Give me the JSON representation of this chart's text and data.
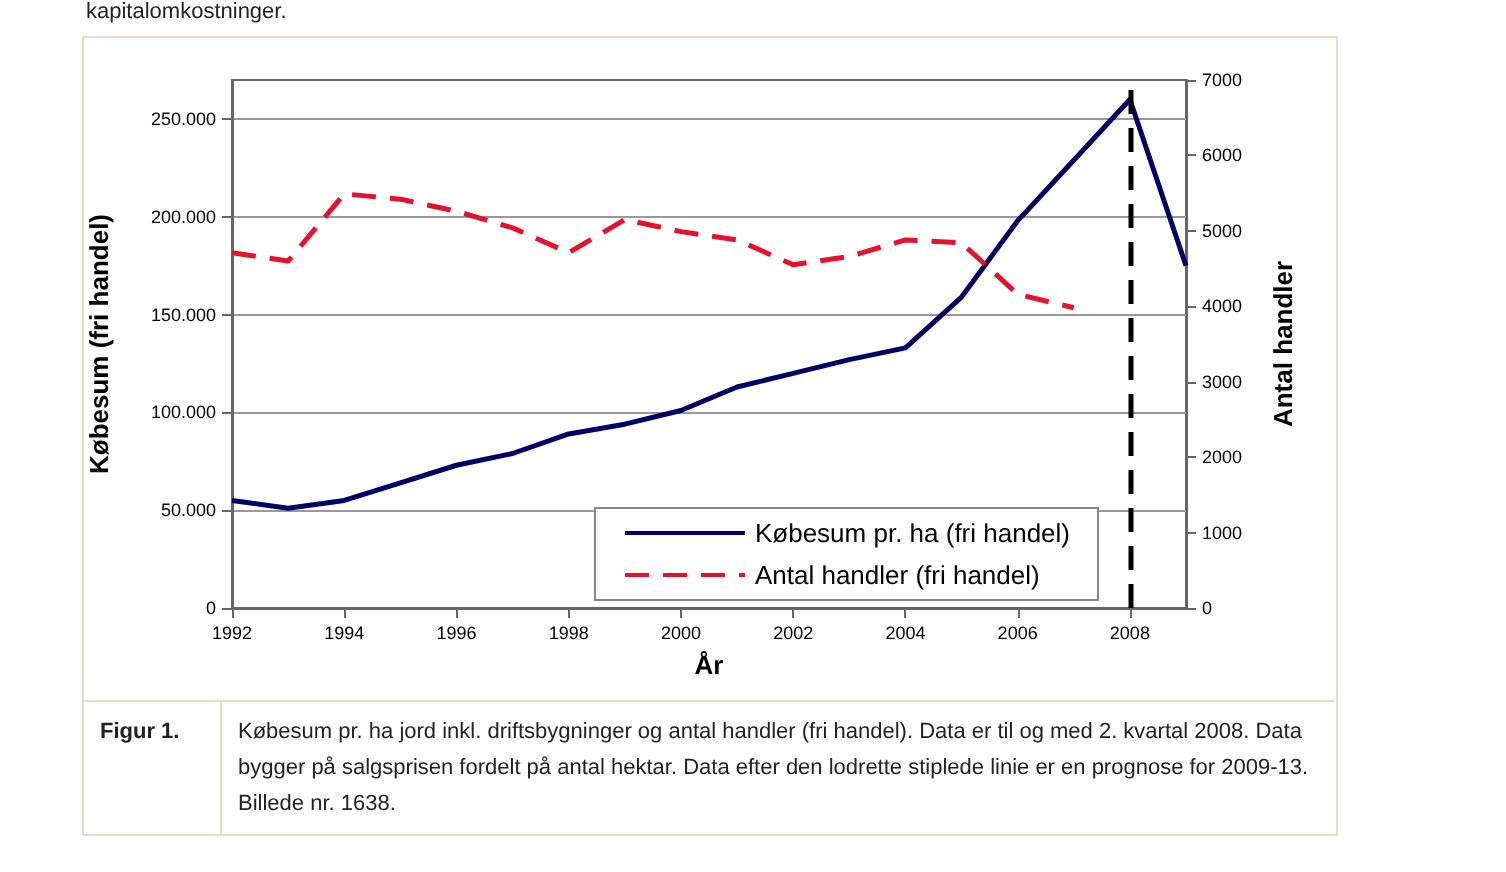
{
  "chart_data": {
    "type": "line",
    "xlabel": "År",
    "ylabel": "Købesum (fri handel)",
    "y2label": "Antal handler",
    "x": [
      1992,
      1993,
      1994,
      1995,
      1996,
      1997,
      1998,
      1999,
      2000,
      2001,
      2002,
      2003,
      2004,
      2005,
      2006,
      2007,
      2008,
      2009
    ],
    "series": [
      {
        "name": "Købesum pr. ha (fri handel)",
        "color": "#000066",
        "line_style": "solid",
        "values": [
          55000,
          51000,
          55000,
          64000,
          73000,
          79000,
          89000,
          94000,
          101000,
          113000,
          120000,
          127000,
          133000,
          159000,
          198000,
          229000,
          260000,
          175000
        ]
      },
      {
        "name": "Antal handler (fri handel)",
        "color": "#e8112d",
        "line_style": "dashed",
        "axis": "y2",
        "values": [
          4710,
          4600,
          5490,
          5420,
          5260,
          5040,
          4710,
          5150,
          4990,
          4880,
          4550,
          4660,
          4880,
          4840,
          4160,
          3980,
          null,
          null
        ]
      }
    ],
    "xlim": [
      1992,
      2009
    ],
    "xticks": [
      1992,
      1994,
      1996,
      1998,
      2000,
      2002,
      2004,
      2006,
      2008
    ],
    "ylim": [
      0,
      270000
    ],
    "yticks": [
      {
        "value": 0,
        "label": "0"
      },
      {
        "value": 50000,
        "label": "50.000"
      },
      {
        "value": 100000,
        "label": "100.000"
      },
      {
        "value": 150000,
        "label": "150.000"
      },
      {
        "value": 200000,
        "label": "200.000"
      },
      {
        "value": 250000,
        "label": "250.000"
      }
    ],
    "y2lim": [
      0,
      7000
    ],
    "y2ticks": [
      0,
      1000,
      2000,
      3000,
      4000,
      5000,
      6000,
      7000
    ],
    "ref_lines": [
      {
        "axis": "x",
        "value": 2008,
        "color": "#000000",
        "line_style": "dashed"
      }
    ],
    "grid": "y",
    "legend": "bottom right",
    "marker": "none",
    "annotations": [
      "kapitalomkostninger.",
      "Figur 1.",
      "Købesum pr. ha jord inkl. driftsbygninger og antal handler (fri handel). Data er til og med 2. kvartal 2008. Data bygger på salgsprisen fordelt på antal hektar. Data efter den lodrette stiplede linie er en prognose for 2009-13. Billede nr. 1638."
    ]
  }
}
